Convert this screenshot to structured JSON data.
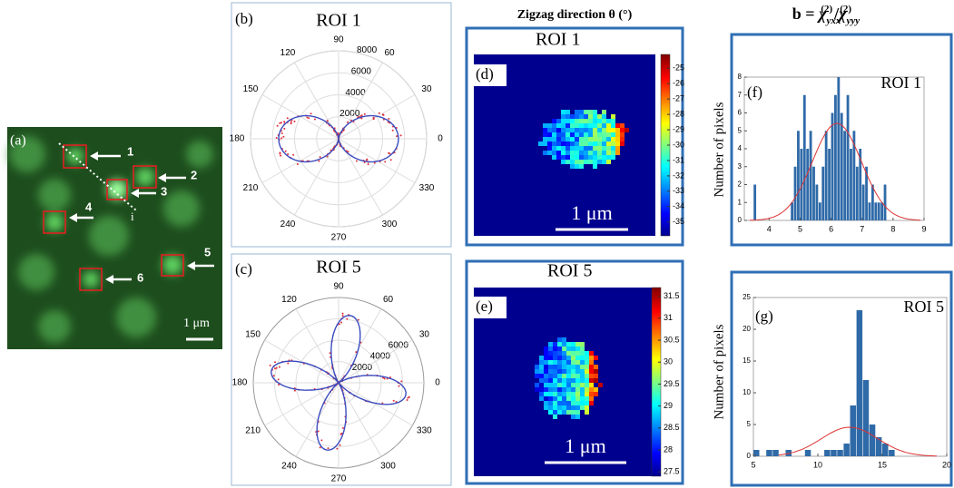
{
  "panel_labels": [
    "(a)",
    "(b)",
    "(c)",
    "(d)",
    "(e)",
    "(f)",
    "(g)"
  ],
  "micrograph": {
    "roi_labels": [
      "1",
      "2",
      "3",
      "4",
      "5",
      "6"
    ],
    "line_label": "i",
    "scale_bar": "1 μm"
  },
  "heatmap_header": "Zigzag direction θ (°)",
  "histogram_header": {
    "lhs": "b = ",
    "chi": "χ",
    "num_sup": "(2)",
    "num_sub": "yxx",
    "slash": "/",
    "den_sup": "(2)",
    "den_sub": "yyy"
  },
  "chart_data": [
    {
      "type": "polar",
      "title": "ROI 1",
      "angle_ticks": [
        90,
        60,
        30,
        0,
        330,
        300,
        270,
        240,
        210,
        180,
        150,
        120
      ],
      "rlim": [
        0,
        8000
      ],
      "rticks": [
        2000,
        4000,
        6000,
        8000
      ]
    },
    {
      "type": "polar",
      "title": "ROI 5",
      "angle_ticks": [
        90,
        60,
        30,
        0,
        330,
        300,
        270,
        240,
        210,
        180,
        150,
        120
      ],
      "rlim": [
        0,
        8000
      ],
      "rticks": [
        2000,
        4000,
        6000
      ]
    },
    {
      "type": "heatmap",
      "title": "ROI 1",
      "clim": [
        -35.9,
        -24.1
      ],
      "cticks": [
        -25,
        -26,
        -27,
        -28,
        -29,
        -30,
        -31,
        -32,
        -33,
        -34,
        -35
      ],
      "scale_bar": "1 μm"
    },
    {
      "type": "heatmap",
      "title": "ROI 5",
      "clim": [
        27.4,
        31.7
      ],
      "cticks": [
        31.5,
        31,
        30.5,
        30,
        29.5,
        29,
        28.5,
        28,
        27.5
      ],
      "scale_bar": "1 μm"
    },
    {
      "type": "histogram",
      "title": "ROI 1",
      "ylabel": "Number of pixels",
      "color": "#2f6aa8",
      "bins": [
        3.4,
        3.5,
        3.6,
        3.7,
        3.8,
        3.9,
        4.0,
        4.1,
        4.2,
        4.3,
        4.4,
        4.5,
        4.6,
        4.7,
        4.8,
        4.9,
        5.0,
        5.1,
        5.2,
        5.3,
        5.4,
        5.5,
        5.6,
        5.7,
        5.8,
        5.9,
        6.0,
        6.1,
        6.2,
        6.3,
        6.4,
        6.5,
        6.6,
        6.7,
        6.8,
        6.9,
        7.0,
        7.1,
        7.2,
        7.3,
        7.4,
        7.5,
        7.6,
        7.7,
        7.8,
        7.9,
        8.0
      ],
      "values": [
        0,
        2,
        0,
        0,
        0,
        0,
        0,
        0,
        0,
        0,
        0,
        0,
        0,
        1,
        3,
        5,
        4,
        7,
        4,
        5,
        3,
        2,
        1,
        3,
        5,
        4,
        6,
        7,
        8,
        6,
        5,
        7,
        4,
        5,
        3,
        4,
        2,
        3,
        1,
        2,
        1,
        1,
        1,
        2,
        0,
        0
      ],
      "xlim": [
        3.2,
        9
      ],
      "xticks": [
        4,
        5,
        6,
        7,
        8,
        9
      ],
      "ylim": [
        0,
        8
      ],
      "yticks": [
        0,
        1,
        2,
        3,
        4,
        5,
        6,
        7,
        8
      ]
    },
    {
      "type": "histogram",
      "title": "ROI 5",
      "ylabel": "Number of pixels",
      "color": "#2f6aa8",
      "bins": [
        5,
        5.5,
        6,
        6.5,
        7,
        7.5,
        8,
        8.5,
        9,
        9.5,
        10,
        10.5,
        11,
        11.5,
        12,
        12.5,
        13,
        13.5,
        14,
        14.5,
        15,
        15.5,
        16,
        16.5,
        17,
        17.5,
        18,
        18.5,
        19,
        19.5,
        20
      ],
      "values": [
        1,
        0,
        1,
        1,
        0,
        1,
        0,
        0,
        1,
        0,
        0,
        1,
        1,
        1,
        2,
        8,
        23,
        12,
        5,
        3,
        2,
        1,
        0,
        0,
        0,
        0,
        0,
        0,
        0,
        0
      ],
      "xlim": [
        5,
        20
      ],
      "xticks": [
        5,
        10,
        15,
        20
      ],
      "ylim": [
        0,
        25
      ],
      "yticks": [
        0,
        5,
        10,
        15,
        20,
        25
      ]
    }
  ]
}
